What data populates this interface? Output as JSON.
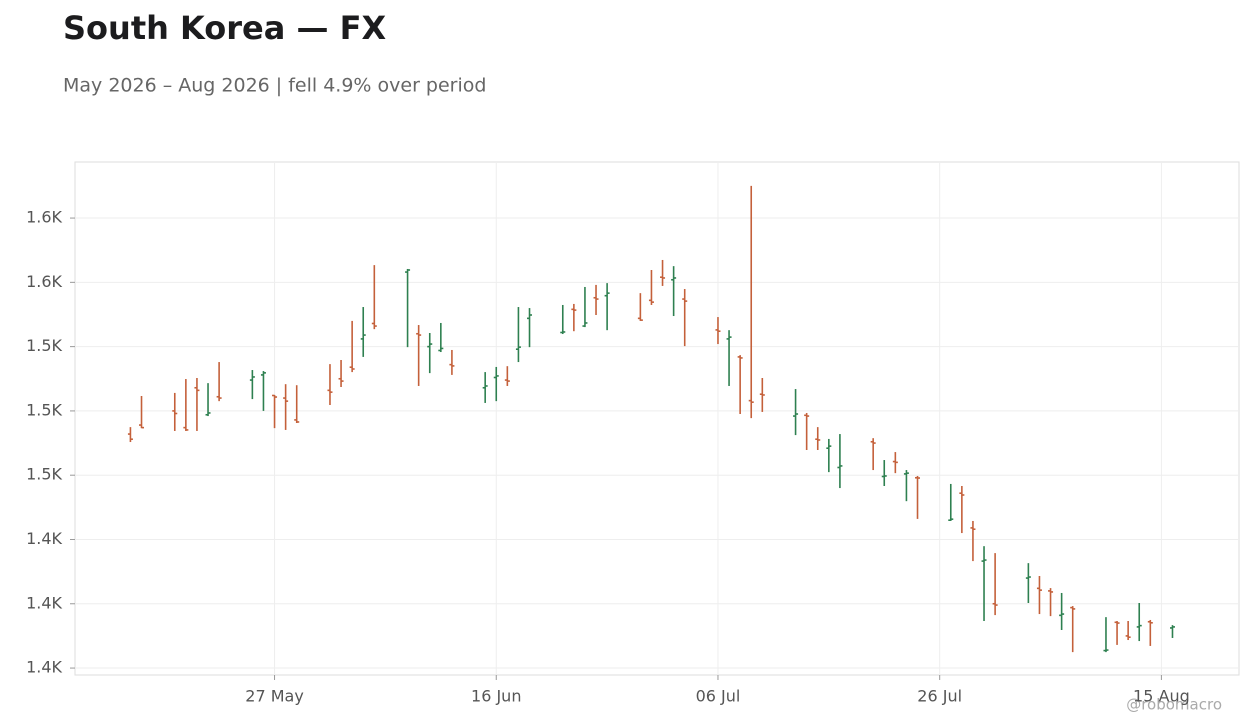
{
  "chart_data": {
    "type": "ohlc",
    "title": "South Korea — FX",
    "subtitle": "May 2026 – Aug 2026 | fell 4.9% over period",
    "watermark": "@robomacro",
    "up_color": "#2e8050",
    "down_color": "#c4603a",
    "x": [
      "2026-05-14",
      "2026-05-15",
      "2026-05-18",
      "2026-05-19",
      "2026-05-20",
      "2026-05-21",
      "2026-05-22",
      "2026-05-25",
      "2026-05-26",
      "2026-05-27",
      "2026-05-28",
      "2026-05-29",
      "2026-06-01",
      "2026-06-02",
      "2026-06-03",
      "2026-06-04",
      "2026-06-05",
      "2026-06-08",
      "2026-06-09",
      "2026-06-10",
      "2026-06-11",
      "2026-06-12",
      "2026-06-15",
      "2026-06-16",
      "2026-06-17",
      "2026-06-18",
      "2026-06-19",
      "2026-06-22",
      "2026-06-23",
      "2026-06-24",
      "2026-06-25",
      "2026-06-26",
      "2026-06-29",
      "2026-06-30",
      "2026-07-01",
      "2026-07-02",
      "2026-07-03",
      "2026-07-06",
      "2026-07-07",
      "2026-07-08",
      "2026-07-09",
      "2026-07-10",
      "2026-07-13",
      "2026-07-14",
      "2026-07-15",
      "2026-07-16",
      "2026-07-17",
      "2026-07-20",
      "2026-07-21",
      "2026-07-22",
      "2026-07-23",
      "2026-07-24",
      "2026-07-27",
      "2026-07-28",
      "2026-07-29",
      "2026-07-30",
      "2026-07-31",
      "2026-08-03",
      "2026-08-04",
      "2026-08-05",
      "2026-08-06",
      "2026-08-07",
      "2026-08-10",
      "2026-08-11",
      "2026-08-12",
      "2026-08-13",
      "2026-08-14",
      "2026-08-16"
    ],
    "open": [
      1491,
      1494.5,
      1500,
      1493.5,
      1509,
      1498.5,
      1505.5,
      1512,
      1514,
      1506,
      1505,
      1496.5,
      1508,
      1512.5,
      1517,
      1528,
      1534,
      1554,
      1530,
      1525,
      1523.5,
      1518,
      1509,
      1513,
      1512,
      1524,
      1536,
      1530.5,
      1539.5,
      1533,
      1544,
      1544.8,
      1536,
      1543,
      1552,
      1551,
      1543.5,
      1531.5,
      1528,
      1521,
      1504,
      1506.5,
      1498,
      1498.3,
      1489,
      1485.5,
      1478,
      1488,
      1474.5,
      1480.3,
      1475.5,
      1474,
      1457.5,
      1468,
      1454.5,
      1441.6,
      1425,
      1435,
      1431,
      1430,
      1420.5,
      1423.5,
      1406.8,
      1417.8,
      1412.5,
      1416,
      1418,
      1415.6
    ],
    "high": [
      1493.7,
      1505.8,
      1507,
      1512.4,
      1512.8,
      1510.8,
      1519,
      1515.9,
      1515.5,
      1506.2,
      1510.4,
      1510,
      1518.2,
      1519.8,
      1535,
      1540.4,
      1556.7,
      1555.2,
      1533.4,
      1530.3,
      1534.2,
      1523.7,
      1515.1,
      1517.1,
      1517.4,
      1540.4,
      1540,
      1541.2,
      1541.6,
      1548.2,
      1549,
      1549.7,
      1545.8,
      1554.8,
      1558.7,
      1556.3,
      1547.4,
      1536.5,
      1531.4,
      1521.7,
      1587.5,
      1512.8,
      1508.5,
      1499.2,
      1493.7,
      1489.1,
      1491,
      1489.4,
      1480.9,
      1484,
      1477,
      1474.7,
      1471.6,
      1470.8,
      1457.2,
      1447.4,
      1444.7,
      1440.8,
      1435.8,
      1431.1,
      1429.2,
      1424.1,
      1419.8,
      1418.3,
      1418.3,
      1425.3,
      1418.7,
      1416.7
    ],
    "low": [
      1487.9,
      1493.3,
      1492.2,
      1492.2,
      1492.2,
      1498,
      1503.8,
      1504.6,
      1500,
      1493.3,
      1492.6,
      1495.3,
      1502.3,
      1509.3,
      1515.1,
      1521,
      1531.8,
      1524.8,
      1509.7,
      1514.7,
      1522.9,
      1514,
      1503.1,
      1503.8,
      1509.7,
      1519,
      1524.8,
      1529.9,
      1531,
      1532.6,
      1537.3,
      1531.4,
      1535,
      1541.2,
      1548.6,
      1536.9,
      1525.2,
      1526,
      1509.7,
      1498.8,
      1497.2,
      1499.6,
      1490.6,
      1484.8,
      1484.8,
      1476.2,
      1470,
      1477,
      1470.8,
      1475.8,
      1464.9,
      1458,
      1457.2,
      1452.5,
      1441.6,
      1418.3,
      1420.6,
      1425.3,
      1421,
      1420.2,
      1414.8,
      1406.2,
      1406.2,
      1409,
      1410.9,
      1410.5,
      1408.6,
      1411.7
    ],
    "close": [
      1489,
      1493.5,
      1499,
      1492.6,
      1508,
      1499.2,
      1505,
      1513.2,
      1514.8,
      1505.4,
      1503.8,
      1495.7,
      1507.3,
      1511.6,
      1516.3,
      1529.5,
      1533,
      1554.8,
      1529.5,
      1526,
      1524.3,
      1517.5,
      1509.7,
      1513.6,
      1511.6,
      1524.8,
      1537.3,
      1530.7,
      1539.2,
      1534.2,
      1543.5,
      1545.8,
      1535.3,
      1542.3,
      1551.7,
      1551.7,
      1542.7,
      1531,
      1528.7,
      1520.6,
      1503.4,
      1506.2,
      1498.8,
      1498,
      1488.7,
      1486.3,
      1478.6,
      1487.5,
      1474.7,
      1480,
      1475.8,
      1473.9,
      1457.9,
      1467.3,
      1454,
      1442,
      1424.5,
      1435.4,
      1430.3,
      1429.6,
      1421,
      1423,
      1407,
      1417.5,
      1412,
      1416.5,
      1417.6,
      1416
    ],
    "xlim": [
      "2026-05-09",
      "2026-08-22"
    ],
    "xticks": [
      {
        "value": "2026-05-27",
        "label": "27 May"
      },
      {
        "value": "2026-06-16",
        "label": "16 Jun"
      },
      {
        "value": "2026-07-06",
        "label": "06 Jul"
      },
      {
        "value": "2026-07-26",
        "label": "26 Jul"
      },
      {
        "value": "2026-08-15",
        "label": "15 Aug"
      }
    ],
    "ylim": [
      1397.3,
      1596.8
    ],
    "yticks": [
      {
        "value": 1400,
        "label": "1.4K"
      },
      {
        "value": 1425,
        "label": "1.4K"
      },
      {
        "value": 1450,
        "label": "1.4K"
      },
      {
        "value": 1475,
        "label": "1.5K"
      },
      {
        "value": 1500,
        "label": "1.5K"
      },
      {
        "value": 1525,
        "label": "1.5K"
      },
      {
        "value": 1550,
        "label": "1.6K"
      },
      {
        "value": 1575,
        "label": "1.6K"
      }
    ],
    "grid": true
  }
}
